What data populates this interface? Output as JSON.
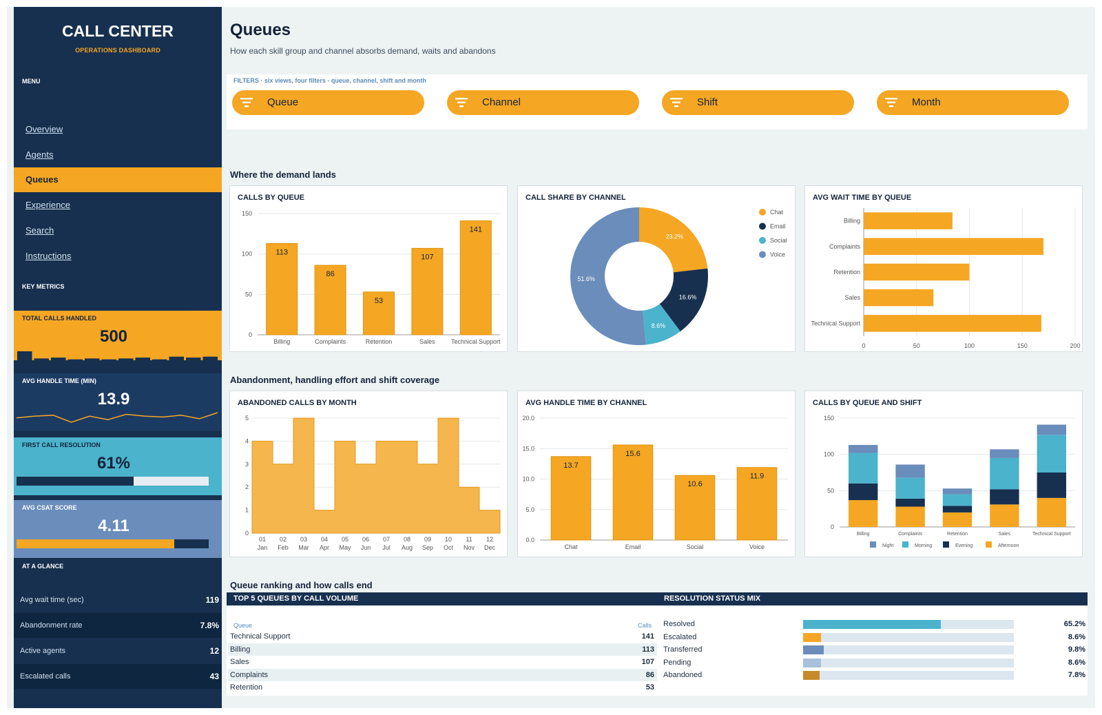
{
  "sidebar": {
    "title": "CALL CENTER",
    "subtitle": "OPERATIONS DASHBOARD",
    "menu_label": "MENU",
    "menu": [
      {
        "label": "Overview",
        "active": false
      },
      {
        "label": "Agents",
        "active": false
      },
      {
        "label": "Queues",
        "active": true
      },
      {
        "label": "Experience",
        "active": false
      },
      {
        "label": "Search",
        "active": false
      },
      {
        "label": "Instructions",
        "active": false
      }
    ],
    "metrics_label": "KEY METRICS",
    "metrics": [
      {
        "label": "TOTAL CALLS HANDLED",
        "value": "500",
        "bg": "#f5a623",
        "spark_bars": [
          10,
          2,
          3,
          1,
          2,
          1,
          2,
          3,
          1,
          4,
          3,
          4
        ]
      },
      {
        "label": "AVG HANDLE TIME (MIN)",
        "value": "13.9",
        "bg": "#1c3b63",
        "spark_line": [
          13.7,
          13.9,
          14.0,
          13.2,
          13.9,
          13.5,
          14.1,
          13.9,
          13.8,
          14.0,
          13.6,
          14.3
        ]
      },
      {
        "label": "FIRST CALL RESOLUTION",
        "value": "61%",
        "bg": "#4bb3cc",
        "progress": 0.61
      },
      {
        "label": "AVG CSAT SCORE",
        "value": "4.11",
        "bg": "#6a8dbb",
        "progress": 0.822
      }
    ],
    "glance_label": "AT A GLANCE",
    "glance": [
      {
        "label": "Avg wait time (sec)",
        "value": "119"
      },
      {
        "label": "Abandonment rate",
        "value": "7.8%"
      },
      {
        "label": "Active agents",
        "value": "12"
      },
      {
        "label": "Escalated calls",
        "value": "43"
      }
    ]
  },
  "header": {
    "title": "Queues",
    "subtitle": "How each skill group and channel absorbs demand, waits and abandons"
  },
  "filters": {
    "caption": "FILTERS · six views, four filters - queue, channel, shift and month",
    "items": [
      "Queue",
      "Channel",
      "Shift",
      "Month"
    ]
  },
  "sections": {
    "demand": "Where the demand lands",
    "abandon": "Abandonment, handling effort and shift coverage",
    "ranking": "Queue ranking and how calls end"
  },
  "colors": {
    "accent": "#f5a623",
    "navy": "#17304f",
    "teal": "#4bb3cc",
    "slate": "#6a8dbb"
  },
  "chart_data": [
    {
      "id": "calls_by_queue",
      "type": "bar",
      "title": "CALLS BY QUEUE",
      "categories": [
        "Billing",
        "Complaints",
        "Retention",
        "Sales",
        "Technical Support"
      ],
      "values": [
        113,
        86,
        53,
        107,
        141
      ],
      "ylim": [
        0,
        150
      ],
      "yticks": [
        "0",
        "50",
        "100",
        "150"
      ],
      "grid": true
    },
    {
      "id": "call_share",
      "type": "pie",
      "title": "CALL SHARE BY CHANNEL",
      "labels": [
        "Chat",
        "Email",
        "Social",
        "Voice"
      ],
      "values": [
        23.2,
        16.6,
        8.6,
        51.6
      ],
      "value_labels": [
        "23.2%",
        "16.6%",
        "8.6%",
        "51.6%"
      ],
      "colors": [
        "#f5a623",
        "#17304f",
        "#4bb3cc",
        "#6a8dbb"
      ],
      "legend": "top-right"
    },
    {
      "id": "avg_wait",
      "type": "bar",
      "orientation": "horizontal",
      "title": "AVG WAIT TIME BY QUEUE",
      "categories": [
        "Billing",
        "Complaints",
        "Retention",
        "Sales",
        "Technical Support"
      ],
      "values": [
        84,
        170,
        100,
        66,
        168
      ],
      "xlim": [
        0,
        200
      ],
      "xticks": [
        "0",
        "50",
        "100",
        "150",
        "200"
      ],
      "grid": true
    },
    {
      "id": "abandoned_by_month",
      "type": "area",
      "step": true,
      "title": "ABANDONED CALLS BY MONTH",
      "x": [
        "01 Jan",
        "02 Feb",
        "03 Mar",
        "04 Apr",
        "05 May",
        "06 Jun",
        "07 Jul",
        "08 Aug",
        "09 Sep",
        "10 Oct",
        "11 Nov",
        "12 Dec"
      ],
      "values": [
        4,
        3,
        5,
        1,
        4,
        3,
        4,
        4,
        3,
        5,
        2,
        1
      ],
      "ylim": [
        0,
        5
      ],
      "yticks": [
        "0",
        "1",
        "2",
        "3",
        "4",
        "5"
      ]
    },
    {
      "id": "aht_by_channel",
      "type": "bar",
      "title": "AVG HANDLE TIME BY CHANNEL",
      "categories": [
        "Chat",
        "Email",
        "Social",
        "Voice"
      ],
      "values": [
        13.7,
        15.6,
        10.6,
        11.9
      ],
      "value_labels": [
        "13.7",
        "15.6",
        "10.6",
        "11.9"
      ],
      "ylim": [
        0,
        20
      ],
      "yticks": [
        "0.0",
        "5.0",
        "10.0",
        "15.0",
        "20.0"
      ]
    },
    {
      "id": "queue_shift",
      "type": "bar",
      "stacked": true,
      "title": "CALLS BY QUEUE AND SHIFT",
      "categories": [
        "Billing",
        "Complaints",
        "Retention",
        "Sales",
        "Technical Support"
      ],
      "series": [
        {
          "name": "Afternoon",
          "color": "#f5a623",
          "values": [
            37,
            28,
            20,
            31,
            40
          ]
        },
        {
          "name": "Evening",
          "color": "#17304f",
          "values": [
            23,
            11,
            9,
            21,
            35
          ]
        },
        {
          "name": "Morning",
          "color": "#4bb3cc",
          "values": [
            42,
            29,
            16,
            43,
            52
          ]
        },
        {
          "name": "Night",
          "color": "#6a8dbb",
          "values": [
            11,
            18,
            8,
            12,
            14
          ]
        }
      ],
      "legend_order": [
        "Night",
        "Morning",
        "Evening",
        "Afternoon"
      ],
      "ylim": [
        0,
        150
      ],
      "yticks": [
        "0",
        "50",
        "100",
        "150"
      ],
      "legend": "bottom"
    }
  ],
  "ranking": {
    "title": "TOP 5 QUEUES BY CALL VOLUME",
    "col_queue": "Queue",
    "col_calls": "Calls",
    "rows": [
      {
        "queue": "Technical Support",
        "calls": "141"
      },
      {
        "queue": "Billing",
        "calls": "113"
      },
      {
        "queue": "Sales",
        "calls": "107"
      },
      {
        "queue": "Complaints",
        "calls": "86"
      },
      {
        "queue": "Retention",
        "calls": "53"
      }
    ]
  },
  "resolution": {
    "title": "RESOLUTION STATUS MIX",
    "rows": [
      {
        "label": "Resolved",
        "value": "65.2%",
        "share": 0.652,
        "color": "#4bb3cc"
      },
      {
        "label": "Escalated",
        "value": "8.6%",
        "share": 0.086,
        "color": "#f5a623"
      },
      {
        "label": "Transferred",
        "value": "9.8%",
        "share": 0.098,
        "color": "#6a8dbb"
      },
      {
        "label": "Pending",
        "value": "8.6%",
        "share": 0.086,
        "color": "#a7c0dc"
      },
      {
        "label": "Abandoned",
        "value": "7.8%",
        "share": 0.078,
        "color": "#c68a2a"
      }
    ]
  }
}
